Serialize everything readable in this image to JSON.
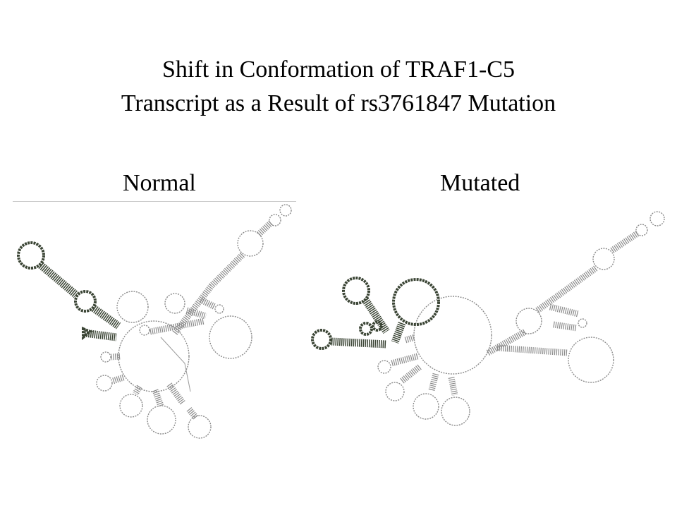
{
  "title": {
    "line1": "Shift in Conformation of TRAF1-C5",
    "line2": "Transcript as a Result of rs3761847 Mutation"
  },
  "panels": {
    "normal": {
      "label": "Normal"
    },
    "mutated": {
      "label": "Mutated"
    }
  }
}
